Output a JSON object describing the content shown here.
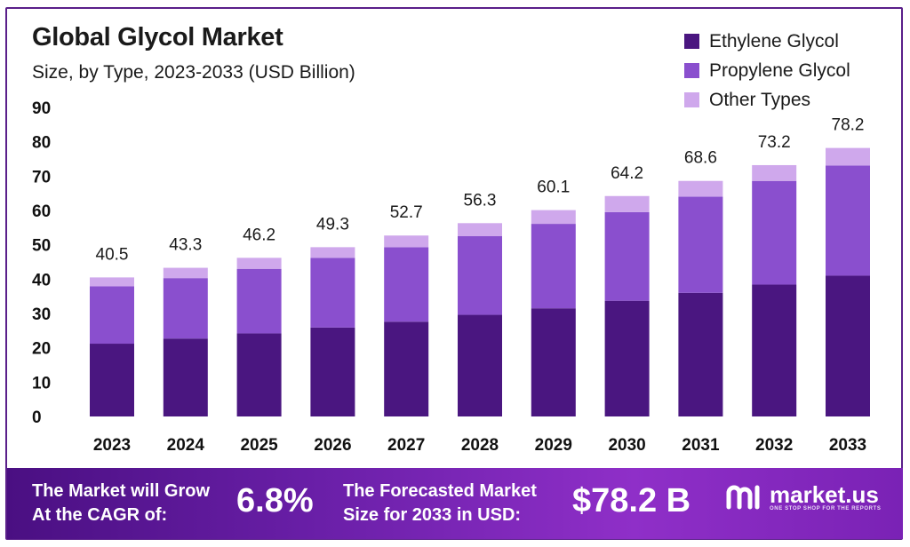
{
  "header": {
    "title": "Global Glycol Market",
    "subtitle": "Size, by Type, 2023-2033 (USD Billion)"
  },
  "colors": {
    "ethylene": "#4a1680",
    "propylene": "#8a4fce",
    "other": "#cfa8ec",
    "axis_text": "#111111",
    "grid": "#e6e6e6"
  },
  "legend": [
    {
      "label": "Ethylene Glycol",
      "color_key": "ethylene"
    },
    {
      "label": "Propylene Glycol",
      "color_key": "propylene"
    },
    {
      "label": "Other Types",
      "color_key": "other"
    }
  ],
  "chart_data": {
    "type": "bar",
    "stacked": true,
    "title": "Global Glycol Market",
    "subtitle": "Size, by Type, 2023-2033 (USD Billion)",
    "categories": [
      "2023",
      "2024",
      "2025",
      "2026",
      "2027",
      "2028",
      "2029",
      "2030",
      "2031",
      "2032",
      "2033"
    ],
    "series": [
      {
        "name": "Ethylene Glycol",
        "values": [
          21.2,
          22.7,
          24.2,
          25.9,
          27.6,
          29.6,
          31.5,
          33.7,
          36.0,
          38.4,
          41.0
        ]
      },
      {
        "name": "Propylene Glycol",
        "values": [
          16.7,
          17.6,
          18.8,
          20.3,
          21.7,
          22.9,
          24.6,
          25.8,
          28.0,
          30.2,
          32.1
        ]
      },
      {
        "name": "Other Types",
        "values": [
          2.6,
          3.0,
          3.2,
          3.1,
          3.4,
          3.8,
          4.0,
          4.7,
          4.6,
          4.6,
          5.1
        ]
      }
    ],
    "totals": [
      "40.5",
      "43.3",
      "46.2",
      "49.3",
      "52.7",
      "56.3",
      "60.1",
      "64.2",
      "68.6",
      "73.2",
      "78.2"
    ],
    "yticks": [
      "0",
      "10",
      "20",
      "30",
      "40",
      "50",
      "60",
      "70",
      "80",
      "90"
    ],
    "ylim": [
      0,
      90
    ],
    "grid": false,
    "legend_position": "top-right"
  },
  "footer": {
    "cagr_label_line1": "The Market will Grow",
    "cagr_label_line2": "At the CAGR of:",
    "cagr_value": "6.8%",
    "forecast_label_line1": "The Forecasted Market",
    "forecast_label_line2": "Size for 2033 in USD:",
    "forecast_value": "$78.2 B",
    "brand_name": "market.us",
    "brand_tagline": "ONE STOP SHOP FOR THE REPORTS",
    "brand_icon": "market-us-logo-icon"
  }
}
